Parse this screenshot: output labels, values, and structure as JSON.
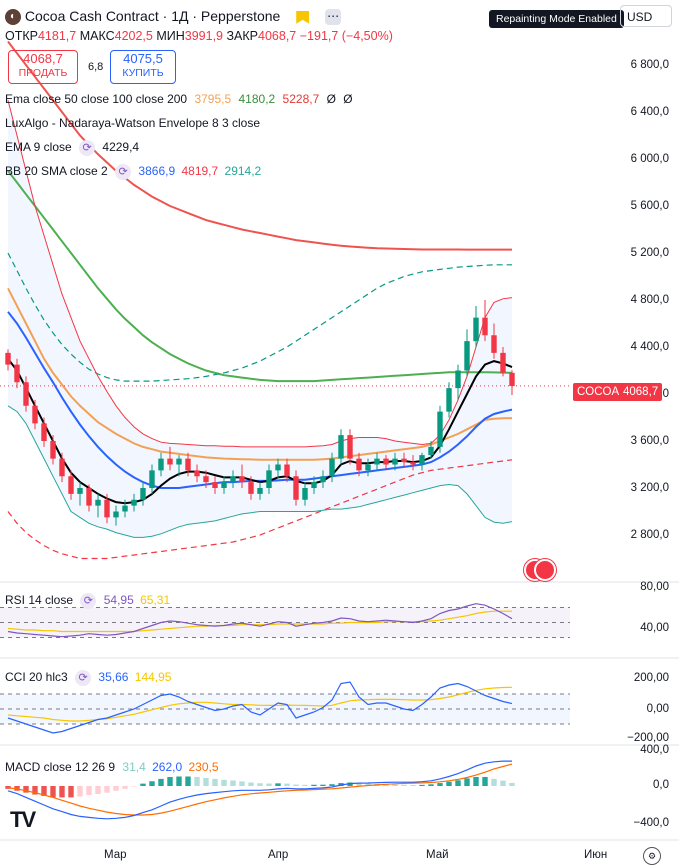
{
  "header": {
    "logo_letter": "◐",
    "symbol": "Cocoa Cash Contract",
    "interval": "1Д",
    "broker": "Pepperstone",
    "open_label": "ОТКР",
    "open": "4181,7",
    "high_label": "МАКС",
    "high": "4202,5",
    "low_label": "МИН",
    "low": "3991,9",
    "close_label": "ЗАКР",
    "close": "4068,7",
    "change": "−191,7 (−4,50%)",
    "repaint_badge": "Repainting Mode Enabled",
    "currency": "USD"
  },
  "trade": {
    "sell_price": "4068,7",
    "sell_label": "ПРОДАТЬ",
    "spread": "6,8",
    "buy_price": "4075,5",
    "buy_label": "КУПИТЬ"
  },
  "indicators": {
    "ema_line": "Ema close 50 close 100 close 200",
    "ema_v1": "3795,5",
    "ema_v2": "4180,2",
    "ema_v3": "5228,7",
    "ema_v4": "Ø",
    "ema_v5": "Ø",
    "luxalgo": "LuxAlgo - Nadaraya-Watson Envelope 8 3 close",
    "ema9": "EMA 9 close",
    "ema9_v": "4229,4",
    "bb": "BB 20 SMA close 2",
    "bb_v1": "3866,9",
    "bb_v2": "4819,7",
    "bb_v3": "2914,2"
  },
  "colors": {
    "up": "#089981",
    "down": "#f23645",
    "ema50": "#f2a154",
    "ema100": "#4caf50",
    "ema200": "#ef5350",
    "ema9": "#000000",
    "bb_basis": "#2962ff",
    "bb_band": "#f23645",
    "bb_lower": "#26a69a",
    "rsi": "#7e57c2",
    "cci": "#2962ff",
    "macd_hist": "#b2dfdb"
  },
  "price_axis": [
    "6 800,0",
    "6 400,0",
    "6 000,0",
    "5 600,0",
    "5 200,0",
    "4 800,0",
    "4 400,0",
    "4 000,0",
    "3 600,0",
    "3 200,0",
    "2 800,0"
  ],
  "last_price": {
    "label": "COCOA",
    "value": "4068,7"
  },
  "date_axis": [
    "Мар",
    "Апр",
    "Май",
    "Июн"
  ],
  "rsi": {
    "title": "RSI 14 close",
    "v1": "54,95",
    "v2": "65,31",
    "axis": [
      "80,00",
      "40,00"
    ]
  },
  "cci": {
    "title": "CCI 20 hlc3",
    "v1": "35,66",
    "v2": "144,95",
    "axis": [
      "200,00",
      "0,00",
      "−200,00"
    ]
  },
  "macd": {
    "title": "MACD close 12 26 9",
    "v1": "31,4",
    "v2": "262,0",
    "v3": "230,5",
    "axis": [
      "400,0",
      "0,0",
      "−400,0"
    ]
  },
  "chart_data": {
    "type": "candlestick",
    "title": "Cocoa Cash Contract · 1Д · Pepperstone",
    "y_range": [
      2600,
      7000
    ],
    "ohlc": [
      [
        4350,
        4380,
        4200,
        4250
      ],
      [
        4250,
        4300,
        4050,
        4100
      ],
      [
        4100,
        4150,
        3850,
        3900
      ],
      [
        3900,
        3950,
        3700,
        3750
      ],
      [
        3750,
        3800,
        3550,
        3600
      ],
      [
        3600,
        3650,
        3400,
        3450
      ],
      [
        3450,
        3500,
        3250,
        3300
      ],
      [
        3300,
        3350,
        3100,
        3150
      ],
      [
        3150,
        3250,
        3050,
        3200
      ],
      [
        3200,
        3230,
        3000,
        3050
      ],
      [
        3050,
        3150,
        2950,
        3100
      ],
      [
        3100,
        3150,
        2900,
        2950
      ],
      [
        2950,
        3050,
        2880,
        3000
      ],
      [
        3000,
        3100,
        2950,
        3050
      ],
      [
        3050,
        3150,
        3000,
        3100
      ],
      [
        3100,
        3250,
        3050,
        3200
      ],
      [
        3200,
        3400,
        3150,
        3350
      ],
      [
        3350,
        3500,
        3300,
        3450
      ],
      [
        3450,
        3550,
        3350,
        3400
      ],
      [
        3400,
        3480,
        3300,
        3450
      ],
      [
        3450,
        3500,
        3300,
        3350
      ],
      [
        3350,
        3400,
        3250,
        3300
      ],
      [
        3300,
        3350,
        3200,
        3250
      ],
      [
        3250,
        3300,
        3150,
        3200
      ],
      [
        3200,
        3300,
        3150,
        3250
      ],
      [
        3250,
        3350,
        3200,
        3300
      ],
      [
        3300,
        3400,
        3200,
        3250
      ],
      [
        3250,
        3300,
        3100,
        3150
      ],
      [
        3150,
        3250,
        3100,
        3200
      ],
      [
        3200,
        3400,
        3150,
        3350
      ],
      [
        3350,
        3450,
        3280,
        3400
      ],
      [
        3400,
        3450,
        3250,
        3300
      ],
      [
        3300,
        3350,
        3050,
        3100
      ],
      [
        3100,
        3250,
        3050,
        3200
      ],
      [
        3200,
        3300,
        3150,
        3250
      ],
      [
        3250,
        3350,
        3200,
        3300
      ],
      [
        3300,
        3500,
        3250,
        3450
      ],
      [
        3450,
        3700,
        3400,
        3650
      ],
      [
        3650,
        3700,
        3400,
        3450
      ],
      [
        3450,
        3500,
        3300,
        3350
      ],
      [
        3350,
        3450,
        3300,
        3400
      ],
      [
        3400,
        3500,
        3350,
        3450
      ],
      [
        3450,
        3480,
        3350,
        3400
      ],
      [
        3400,
        3500,
        3350,
        3450
      ],
      [
        3450,
        3500,
        3380,
        3420
      ],
      [
        3420,
        3480,
        3350,
        3400
      ],
      [
        3400,
        3500,
        3350,
        3480
      ],
      [
        3480,
        3600,
        3450,
        3550
      ],
      [
        3550,
        3900,
        3500,
        3850
      ],
      [
        3850,
        4100,
        3800,
        4050
      ],
      [
        4050,
        4250,
        3950,
        4200
      ],
      [
        4200,
        4550,
        4150,
        4450
      ],
      [
        4450,
        4750,
        4400,
        4650
      ],
      [
        4650,
        4800,
        4450,
        4500
      ],
      [
        4500,
        4600,
        4300,
        4350
      ],
      [
        4350,
        4400,
        4150,
        4180
      ],
      [
        4180,
        4202,
        3992,
        4068
      ]
    ],
    "ema50": [
      4900,
      4750,
      4600,
      4450,
      4300,
      4180,
      4080,
      3980,
      3900,
      3830,
      3760,
      3710,
      3660,
      3620,
      3580,
      3550,
      3530,
      3510,
      3500,
      3490,
      3480,
      3470,
      3460,
      3455,
      3450,
      3448,
      3445,
      3443,
      3440,
      3440,
      3440,
      3440,
      3440,
      3440,
      3440,
      3445,
      3450,
      3460,
      3470,
      3480,
      3490,
      3500,
      3510,
      3520,
      3530,
      3540,
      3550,
      3570,
      3600,
      3630,
      3660,
      3700,
      3740,
      3780,
      3790,
      3793,
      3795
    ],
    "ema100": [
      5900,
      5800,
      5700,
      5600,
      5500,
      5400,
      5300,
      5200,
      5100,
      5000,
      4900,
      4810,
      4720,
      4640,
      4570,
      4500,
      4440,
      4390,
      4340,
      4300,
      4260,
      4230,
      4200,
      4180,
      4160,
      4150,
      4140,
      4130,
      4120,
      4115,
      4110,
      4110,
      4110,
      4110,
      4110,
      4115,
      4120,
      4125,
      4130,
      4135,
      4140,
      4145,
      4150,
      4155,
      4160,
      4165,
      4170,
      4175,
      4180,
      4185,
      4185,
      4185,
      4185,
      4185,
      4184,
      4182,
      4180
    ],
    "ema200": [
      7000,
      6900,
      6800,
      6700,
      6600,
      6500,
      6400,
      6300,
      6200,
      6120,
      6040,
      5970,
      5900,
      5840,
      5780,
      5730,
      5680,
      5640,
      5600,
      5570,
      5540,
      5510,
      5480,
      5460,
      5440,
      5420,
      5400,
      5385,
      5370,
      5355,
      5340,
      5325,
      5310,
      5300,
      5290,
      5280,
      5270,
      5262,
      5255,
      5250,
      5245,
      5240,
      5238,
      5236,
      5234,
      5232,
      5230,
      5230,
      5230,
      5230,
      5230,
      5229,
      5229,
      5229,
      5229,
      5229,
      5229
    ],
    "ema9": [
      4300,
      4200,
      4050,
      3900,
      3750,
      3600,
      3450,
      3330,
      3250,
      3200,
      3150,
      3110,
      3080,
      3070,
      3080,
      3100,
      3150,
      3220,
      3280,
      3320,
      3340,
      3340,
      3330,
      3310,
      3290,
      3290,
      3290,
      3270,
      3250,
      3260,
      3290,
      3300,
      3260,
      3240,
      3240,
      3260,
      3310,
      3400,
      3430,
      3410,
      3410,
      3420,
      3420,
      3430,
      3430,
      3420,
      3430,
      3460,
      3560,
      3700,
      3850,
      4000,
      4150,
      4250,
      4280,
      4260,
      4229
    ],
    "bb_basis": [
      4700,
      4600,
      4480,
      4350,
      4220,
      4100,
      3970,
      3850,
      3740,
      3640,
      3550,
      3470,
      3400,
      3340,
      3290,
      3250,
      3220,
      3200,
      3200,
      3200,
      3210,
      3220,
      3230,
      3240,
      3250,
      3250,
      3255,
      3260,
      3260,
      3260,
      3265,
      3270,
      3270,
      3270,
      3280,
      3290,
      3300,
      3310,
      3320,
      3330,
      3340,
      3350,
      3360,
      3370,
      3380,
      3390,
      3400,
      3420,
      3460,
      3510,
      3570,
      3640,
      3720,
      3790,
      3830,
      3850,
      3867
    ],
    "bb_upper": [
      6500,
      6200,
      5900,
      5600,
      5350,
      5100,
      4850,
      4650,
      4450,
      4300,
      4150,
      4020,
      3900,
      3800,
      3720,
      3660,
      3620,
      3590,
      3580,
      3575,
      3570,
      3565,
      3560,
      3560,
      3555,
      3555,
      3550,
      3550,
      3550,
      3550,
      3550,
      3550,
      3550,
      3550,
      3555,
      3560,
      3570,
      3600,
      3620,
      3630,
      3630,
      3630,
      3620,
      3600,
      3590,
      3580,
      3570,
      3580,
      3650,
      3780,
      3950,
      4150,
      4400,
      4650,
      4780,
      4810,
      4820
    ],
    "bb_lower": [
      3900,
      3850,
      3750,
      3600,
      3450,
      3300,
      3150,
      3000,
      2950,
      2900,
      2870,
      2850,
      2820,
      2800,
      2780,
      2780,
      2790,
      2810,
      2840,
      2870,
      2890,
      2900,
      2910,
      2920,
      2940,
      2960,
      2980,
      2990,
      3000,
      3000,
      3000,
      3000,
      3000,
      3000,
      3000,
      3010,
      3020,
      3020,
      3030,
      3040,
      3060,
      3080,
      3100,
      3120,
      3140,
      3160,
      3180,
      3200,
      3220,
      3230,
      3220,
      3150,
      3050,
      2950,
      2910,
      2900,
      2914
    ],
    "nw_upper": [
      5200,
      5050,
      4900,
      4760,
      4630,
      4520,
      4420,
      4340,
      4270,
      4210,
      4170,
      4140,
      4120,
      4110,
      4110,
      4110,
      4110,
      4115,
      4120,
      4125,
      4130,
      4140,
      4150,
      4165,
      4180,
      4200,
      4220,
      4250,
      4280,
      4320,
      4360,
      4400,
      4450,
      4500,
      4550,
      4600,
      4650,
      4700,
      4750,
      4800,
      4850,
      4900,
      4940,
      4970,
      5000,
      5020,
      5040,
      5050,
      5060,
      5070,
      5080,
      5085,
      5090,
      5095,
      5100,
      5100,
      5100
    ],
    "nw_lower": [
      3000,
      2900,
      2820,
      2760,
      2710,
      2670,
      2640,
      2620,
      2600,
      2600,
      2600,
      2600,
      2610,
      2620,
      2630,
      2640,
      2650,
      2660,
      2670,
      2680,
      2690,
      2700,
      2710,
      2720,
      2730,
      2740,
      2760,
      2780,
      2800,
      2830,
      2860,
      2890,
      2920,
      2950,
      2980,
      3010,
      3040,
      3070,
      3100,
      3130,
      3160,
      3190,
      3220,
      3250,
      3280,
      3310,
      3330,
      3350,
      3360,
      3370,
      3380,
      3390,
      3400,
      3410,
      3420,
      3430,
      3440
    ],
    "rsi": [
      38,
      36,
      35,
      34,
      33,
      32,
      31,
      32,
      33,
      35,
      34,
      33,
      34,
      36,
      38,
      42,
      46,
      50,
      52,
      51,
      49,
      47,
      46,
      45,
      46,
      48,
      49,
      47,
      45,
      48,
      51,
      50,
      45,
      47,
      49,
      50,
      52,
      56,
      55,
      52,
      51,
      52,
      53,
      52,
      51,
      50,
      52,
      55,
      62,
      66,
      68,
      72,
      75,
      73,
      68,
      62,
      55
    ],
    "rsi_ma": [
      42,
      41,
      40,
      40,
      39,
      39,
      38,
      38,
      38,
      38,
      38,
      38,
      38,
      38,
      38,
      39,
      40,
      41,
      42,
      43,
      44,
      45,
      45,
      46,
      46,
      46,
      47,
      47,
      47,
      47,
      48,
      48,
      48,
      48,
      48,
      48,
      49,
      49,
      50,
      50,
      50,
      50,
      51,
      51,
      51,
      51,
      51,
      52,
      53,
      55,
      57,
      59,
      62,
      64,
      65,
      65,
      65
    ],
    "cci": [
      -60,
      -80,
      -100,
      -120,
      -140,
      -160,
      -150,
      -130,
      -110,
      -90,
      -70,
      -60,
      -40,
      -20,
      0,
      30,
      60,
      90,
      100,
      80,
      50,
      30,
      10,
      -10,
      0,
      20,
      30,
      -20,
      -40,
      0,
      40,
      30,
      -60,
      -40,
      -20,
      10,
      60,
      170,
      180,
      80,
      30,
      40,
      40,
      20,
      0,
      -10,
      30,
      80,
      140,
      160,
      170,
      150,
      120,
      90,
      70,
      50,
      36
    ],
    "cci_ma": [
      -40,
      -45,
      -50,
      -55,
      -60,
      -70,
      -75,
      -80,
      -80,
      -75,
      -70,
      -65,
      -55,
      -45,
      -35,
      -20,
      -5,
      10,
      25,
      35,
      40,
      45,
      45,
      40,
      35,
      30,
      30,
      28,
      25,
      24,
      25,
      26,
      25,
      24,
      22,
      20,
      25,
      40,
      55,
      60,
      62,
      64,
      65,
      64,
      62,
      60,
      60,
      62,
      70,
      80,
      95,
      110,
      125,
      135,
      140,
      143,
      145
    ],
    "macd": [
      -50,
      -80,
      -120,
      -160,
      -200,
      -240,
      -270,
      -300,
      -320,
      -330,
      -340,
      -345,
      -340,
      -330,
      -310,
      -280,
      -250,
      -210,
      -170,
      -140,
      -115,
      -95,
      -80,
      -70,
      -60,
      -50,
      -45,
      -45,
      -45,
      -40,
      -30,
      -25,
      -30,
      -30,
      -25,
      -20,
      -10,
      10,
      25,
      30,
      32,
      35,
      38,
      40,
      40,
      40,
      45,
      55,
      75,
      100,
      130,
      170,
      210,
      240,
      255,
      262,
      262
    ],
    "macd_signal": [
      -20,
      -30,
      -50,
      -70,
      -95,
      -120,
      -150,
      -180,
      -210,
      -235,
      -255,
      -275,
      -290,
      -300,
      -305,
      -305,
      -300,
      -285,
      -265,
      -240,
      -215,
      -190,
      -165,
      -145,
      -125,
      -108,
      -93,
      -82,
      -74,
      -66,
      -58,
      -50,
      -45,
      -42,
      -38,
      -34,
      -29,
      -21,
      -12,
      -3,
      5,
      12,
      18,
      23,
      27,
      30,
      33,
      37,
      44,
      55,
      70,
      90,
      115,
      145,
      180,
      205,
      230
    ]
  }
}
